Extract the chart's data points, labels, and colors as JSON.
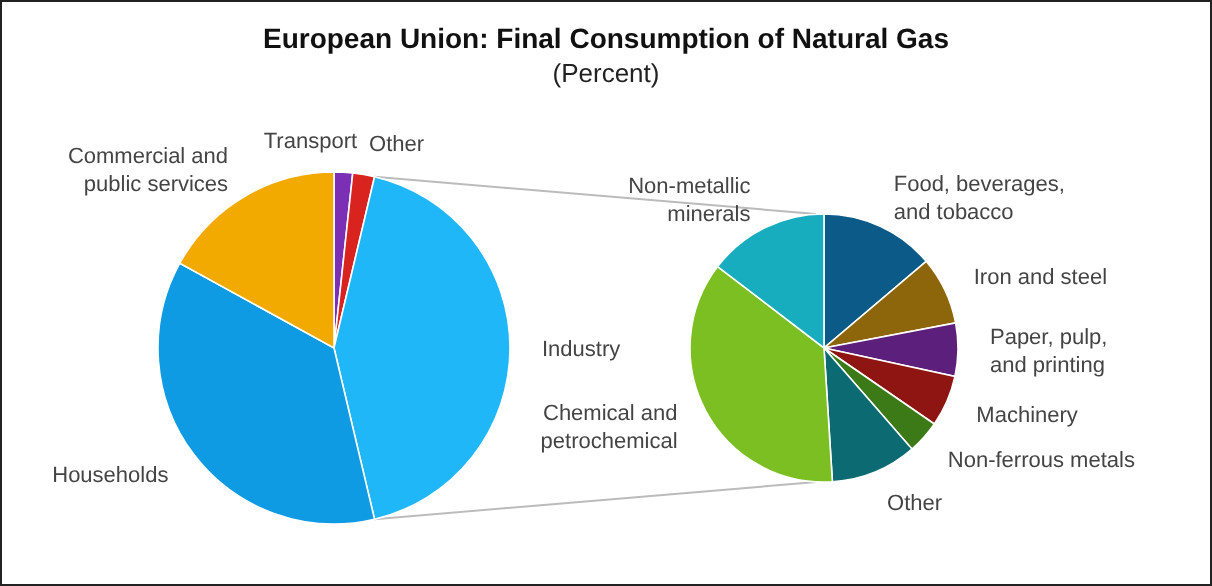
{
  "chart_data": [
    {
      "type": "pie",
      "title": "European Union: Final Consumption of Natural Gas",
      "subtitle": "(Percent)",
      "categories": [
        "Transport",
        "Other",
        "Industry",
        "Households",
        "Commercial and public services"
      ],
      "values": [
        1.7,
        2,
        42.6,
        36.7,
        17
      ],
      "colors": [
        "#7b2fb5",
        "#d8231f",
        "#1fb7f7",
        "#0f9be3",
        "#f2a900"
      ]
    },
    {
      "type": "pie",
      "categories": [
        "Food, beverages, and tobacco",
        "Iron and steel",
        "Paper, pulp, and printing",
        "Machinery",
        "Non-ferrous metals",
        "Other",
        "Chemical and petrochemical",
        "Non-metallic minerals"
      ],
      "values": [
        13.8,
        8.2,
        6.4,
        6.2,
        4,
        10.4,
        36.4,
        14.6
      ],
      "colors": [
        "#0b5a88",
        "#8d650a",
        "#5c1f7c",
        "#8e1512",
        "#3c7a18",
        "#0b6a72",
        "#7bbf22",
        "#17adbf"
      ]
    }
  ]
}
